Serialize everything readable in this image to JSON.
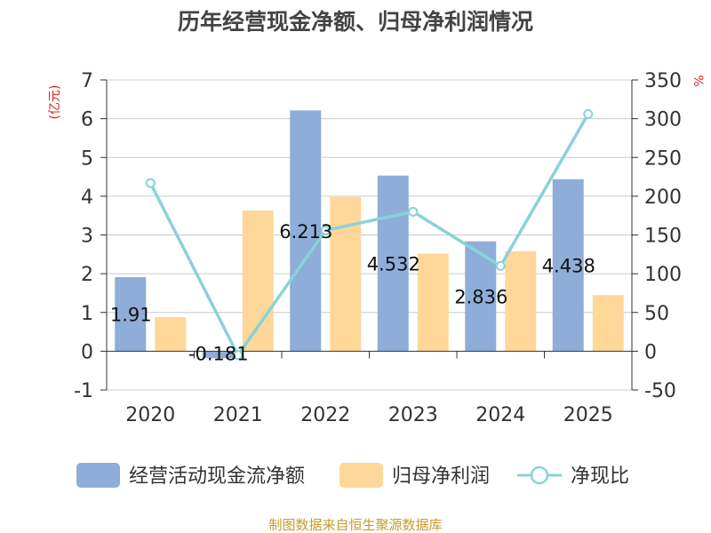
{
  "colors": {
    "cash_flow": "#8eadd9",
    "net_profit": "#fed799",
    "ratio": "#88d3d9",
    "unit": "#dd2222",
    "source": "#c89a2c",
    "axis": "#333333",
    "grid": "#cccccc"
  },
  "chart_data": {
    "type": "bar",
    "title": "历年经营现金净额、归母净利润情况",
    "left_unit": "(亿元)",
    "right_unit": "%",
    "categories": [
      "2020",
      "2021",
      "2022",
      "2023",
      "2024",
      "2025"
    ],
    "y_left": {
      "min": -1,
      "max": 7,
      "ticks": [
        "-1",
        "0",
        "1",
        "2",
        "3",
        "4",
        "5",
        "6",
        "7"
      ]
    },
    "y_right": {
      "min": -50,
      "max": 350,
      "ticks": [
        "-50",
        "0",
        "50",
        "100",
        "150",
        "200",
        "250",
        "300",
        "350"
      ]
    },
    "series": [
      {
        "name": "经营活动现金流净额",
        "type": "bar",
        "axis": "left",
        "values": [
          1.91,
          -0.181,
          6.213,
          4.532,
          2.836,
          4.438
        ],
        "labels": [
          "1.91",
          "-0.181",
          "6.213",
          "4.532",
          "2.836",
          "4.438"
        ]
      },
      {
        "name": "归母净利润",
        "type": "bar",
        "axis": "left",
        "values": [
          0.88,
          3.63,
          3.98,
          2.52,
          2.58,
          1.45
        ]
      },
      {
        "name": "净现比",
        "type": "line",
        "axis": "right",
        "values": [
          217,
          -5,
          156,
          180,
          110,
          306
        ]
      }
    ],
    "source": "制图数据来自恒生聚源数据库"
  }
}
